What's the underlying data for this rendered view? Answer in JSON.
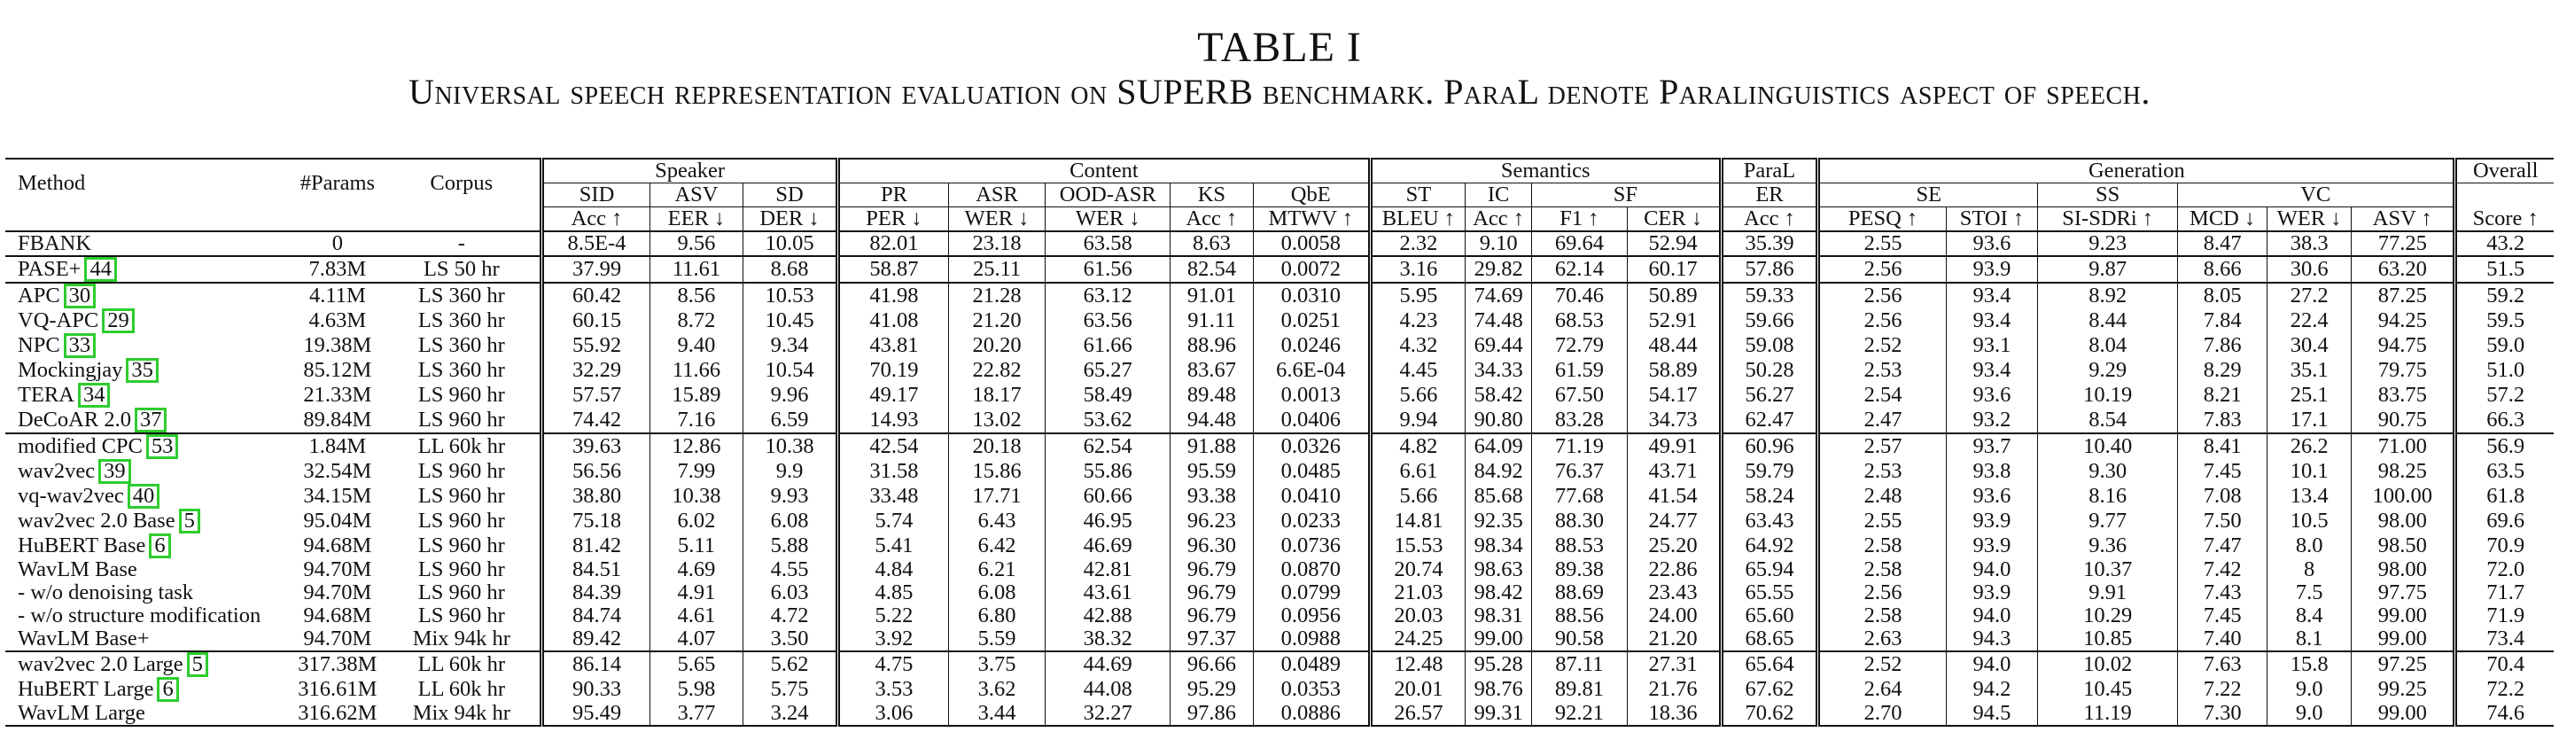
{
  "caption": {
    "table_label": "TABLE I",
    "title": "Universal speech representation evaluation on SUPERB benchmark. ParaL denote Paralinguistics aspect of speech."
  },
  "header": {
    "method": "Method",
    "params": "#Params",
    "corpus": "Corpus",
    "groups": [
      "Speaker",
      "Content",
      "Semantics",
      "ParaL",
      "Generation",
      "Overall"
    ],
    "tasks": [
      "SID",
      "ASV",
      "SD",
      "PR",
      "ASR",
      "OOD-ASR",
      "KS",
      "QbE",
      "ST",
      "IC",
      "SF",
      "ER",
      "SE",
      "SS",
      "VC"
    ],
    "metrics": [
      "Acc ↑",
      "EER ↓",
      "DER ↓",
      "PER ↓",
      "WER ↓",
      "WER ↓",
      "Acc ↑",
      "MTWV ↑",
      "BLEU ↑",
      "Acc ↑",
      "F1 ↑",
      "CER ↓",
      "Acc ↑",
      "PESQ ↑",
      "STOI ↑",
      "SI-SDRi ↑",
      "MCD ↓",
      "WER ↓",
      "ASV ↑",
      "Score ↑"
    ]
  },
  "accent_color": "#2ecc2e",
  "rows": [
    {
      "method": "FBANK",
      "cite": "",
      "params": "0",
      "corpus": "-",
      "values": [
        "8.5E-4",
        "9.56",
        "10.05",
        "82.01",
        "23.18",
        "63.58",
        "8.63",
        "0.0058",
        "2.32",
        "9.10",
        "69.64",
        "52.94",
        "35.39",
        "2.55",
        "93.6",
        "9.23",
        "8.47",
        "38.3",
        "77.25",
        "43.2"
      ],
      "group_start": false
    },
    {
      "method": "PASE+",
      "cite": "44",
      "params": "7.83M",
      "corpus": "LS 50 hr",
      "values": [
        "37.99",
        "11.61",
        "8.68",
        "58.87",
        "25.11",
        "61.56",
        "82.54",
        "0.0072",
        "3.16",
        "29.82",
        "62.14",
        "60.17",
        "57.86",
        "2.56",
        "93.9",
        "9.87",
        "8.66",
        "30.6",
        "63.20",
        "51.5"
      ],
      "group_start": true
    },
    {
      "method": "APC",
      "cite": "30",
      "params": "4.11M",
      "corpus": "LS 360 hr",
      "values": [
        "60.42",
        "8.56",
        "10.53",
        "41.98",
        "21.28",
        "63.12",
        "91.01",
        "0.0310",
        "5.95",
        "74.69",
        "70.46",
        "50.89",
        "59.33",
        "2.56",
        "93.4",
        "8.92",
        "8.05",
        "27.2",
        "87.25",
        "59.2"
      ],
      "group_start": true
    },
    {
      "method": "VQ-APC",
      "cite": "29",
      "params": "4.63M",
      "corpus": "LS 360 hr",
      "values": [
        "60.15",
        "8.72",
        "10.45",
        "41.08",
        "21.20",
        "63.56",
        "91.11",
        "0.0251",
        "4.23",
        "74.48",
        "68.53",
        "52.91",
        "59.66",
        "2.56",
        "93.4",
        "8.44",
        "7.84",
        "22.4",
        "94.25",
        "59.5"
      ],
      "group_start": false
    },
    {
      "method": "NPC",
      "cite": "33",
      "params": "19.38M",
      "corpus": "LS 360 hr",
      "values": [
        "55.92",
        "9.40",
        "9.34",
        "43.81",
        "20.20",
        "61.66",
        "88.96",
        "0.0246",
        "4.32",
        "69.44",
        "72.79",
        "48.44",
        "59.08",
        "2.52",
        "93.1",
        "8.04",
        "7.86",
        "30.4",
        "94.75",
        "59.0"
      ],
      "group_start": false
    },
    {
      "method": "Mockingjay",
      "cite": "35",
      "params": "85.12M",
      "corpus": "LS 360 hr",
      "values": [
        "32.29",
        "11.66",
        "10.54",
        "70.19",
        "22.82",
        "65.27",
        "83.67",
        "6.6E-04",
        "4.45",
        "34.33",
        "61.59",
        "58.89",
        "50.28",
        "2.53",
        "93.4",
        "9.29",
        "8.29",
        "35.1",
        "79.75",
        "51.0"
      ],
      "group_start": false
    },
    {
      "method": "TERA",
      "cite": "34",
      "params": "21.33M",
      "corpus": "LS 960 hr",
      "values": [
        "57.57",
        "15.89",
        "9.96",
        "49.17",
        "18.17",
        "58.49",
        "89.48",
        "0.0013",
        "5.66",
        "58.42",
        "67.50",
        "54.17",
        "56.27",
        "2.54",
        "93.6",
        "10.19",
        "8.21",
        "25.1",
        "83.75",
        "57.2"
      ],
      "group_start": false
    },
    {
      "method": "DeCoAR 2.0",
      "cite": "37",
      "params": "89.84M",
      "corpus": "LS 960 hr",
      "values": [
        "74.42",
        "7.16",
        "6.59",
        "14.93",
        "13.02",
        "53.62",
        "94.48",
        "0.0406",
        "9.94",
        "90.80",
        "83.28",
        "34.73",
        "62.47",
        "2.47",
        "93.2",
        "8.54",
        "7.83",
        "17.1",
        "90.75",
        "66.3"
      ],
      "group_start": false
    },
    {
      "method": "modified CPC",
      "cite": "53",
      "params": "1.84M",
      "corpus": "LL 60k hr",
      "values": [
        "39.63",
        "12.86",
        "10.38",
        "42.54",
        "20.18",
        "62.54",
        "91.88",
        "0.0326",
        "4.82",
        "64.09",
        "71.19",
        "49.91",
        "60.96",
        "2.57",
        "93.7",
        "10.40",
        "8.41",
        "26.2",
        "71.00",
        "56.9"
      ],
      "group_start": true
    },
    {
      "method": "wav2vec",
      "cite": "39",
      "params": "32.54M",
      "corpus": "LS 960 hr",
      "values": [
        "56.56",
        "7.99",
        "9.9",
        "31.58",
        "15.86",
        "55.86",
        "95.59",
        "0.0485",
        "6.61",
        "84.92",
        "76.37",
        "43.71",
        "59.79",
        "2.53",
        "93.8",
        "9.30",
        "7.45",
        "10.1",
        "98.25",
        "63.5"
      ],
      "group_start": false
    },
    {
      "method": "vq-wav2vec",
      "cite": "40",
      "params": "34.15M",
      "corpus": "LS 960 hr",
      "values": [
        "38.80",
        "10.38",
        "9.93",
        "33.48",
        "17.71",
        "60.66",
        "93.38",
        "0.0410",
        "5.66",
        "85.68",
        "77.68",
        "41.54",
        "58.24",
        "2.48",
        "93.6",
        "8.16",
        "7.08",
        "13.4",
        "100.00",
        "61.8"
      ],
      "group_start": false
    },
    {
      "method": "wav2vec 2.0 Base",
      "cite": "5",
      "params": "95.04M",
      "corpus": "LS 960 hr",
      "values": [
        "75.18",
        "6.02",
        "6.08",
        "5.74",
        "6.43",
        "46.95",
        "96.23",
        "0.0233",
        "14.81",
        "92.35",
        "88.30",
        "24.77",
        "63.43",
        "2.55",
        "93.9",
        "9.77",
        "7.50",
        "10.5",
        "98.00",
        "69.6"
      ],
      "group_start": false
    },
    {
      "method": "HuBERT Base",
      "cite": "6",
      "params": "94.68M",
      "corpus": "LS 960 hr",
      "values": [
        "81.42",
        "5.11",
        "5.88",
        "5.41",
        "6.42",
        "46.69",
        "96.30",
        "0.0736",
        "15.53",
        "98.34",
        "88.53",
        "25.20",
        "64.92",
        "2.58",
        "93.9",
        "9.36",
        "7.47",
        "8.0",
        "98.50",
        "70.9"
      ],
      "group_start": false
    },
    {
      "method": "WavLM Base",
      "cite": "",
      "params": "94.70M",
      "corpus": "LS 960 hr",
      "values": [
        "84.51",
        "4.69",
        "4.55",
        "4.84",
        "6.21",
        "42.81",
        "96.79",
        "0.0870",
        "20.74",
        "98.63",
        "89.38",
        "22.86",
        "65.94",
        "2.58",
        "94.0",
        "10.37",
        "7.42",
        "8",
        "98.00",
        "72.0"
      ],
      "group_start": false
    },
    {
      "method": "- w/o denoising task",
      "cite": "",
      "params": "94.70M",
      "corpus": "LS 960 hr",
      "values": [
        "84.39",
        "4.91",
        "6.03",
        "4.85",
        "6.08",
        "43.61",
        "96.79",
        "0.0799",
        "21.03",
        "98.42",
        "88.69",
        "23.43",
        "65.55",
        "2.56",
        "93.9",
        "9.91",
        "7.43",
        "7.5",
        "97.75",
        "71.7"
      ],
      "group_start": false
    },
    {
      "method": "- w/o structure modification",
      "cite": "",
      "params": "94.68M",
      "corpus": "LS 960 hr",
      "values": [
        "84.74",
        "4.61",
        "4.72",
        "5.22",
        "6.80",
        "42.88",
        "96.79",
        "0.0956",
        "20.03",
        "98.31",
        "88.56",
        "24.00",
        "65.60",
        "2.58",
        "94.0",
        "10.29",
        "7.45",
        "8.4",
        "99.00",
        "71.9"
      ],
      "group_start": false
    },
    {
      "method": "WavLM Base+",
      "cite": "",
      "params": "94.70M",
      "corpus": "Mix 94k hr",
      "values": [
        "89.42",
        "4.07",
        "3.50",
        "3.92",
        "5.59",
        "38.32",
        "97.37",
        "0.0988",
        "24.25",
        "99.00",
        "90.58",
        "21.20",
        "68.65",
        "2.63",
        "94.3",
        "10.85",
        "7.40",
        "8.1",
        "99.00",
        "73.4"
      ],
      "group_start": false
    },
    {
      "method": "wav2vec 2.0 Large",
      "cite": "5",
      "params": "317.38M",
      "corpus": "LL 60k hr",
      "values": [
        "86.14",
        "5.65",
        "5.62",
        "4.75",
        "3.75",
        "44.69",
        "96.66",
        "0.0489",
        "12.48",
        "95.28",
        "87.11",
        "27.31",
        "65.64",
        "2.52",
        "94.0",
        "10.02",
        "7.63",
        "15.8",
        "97.25",
        "70.4"
      ],
      "group_start": true
    },
    {
      "method": "HuBERT Large",
      "cite": "6",
      "params": "316.61M",
      "corpus": "LL 60k hr",
      "values": [
        "90.33",
        "5.98",
        "5.75",
        "3.53",
        "3.62",
        "44.08",
        "95.29",
        "0.0353",
        "20.01",
        "98.76",
        "89.81",
        "21.76",
        "67.62",
        "2.64",
        "94.2",
        "10.45",
        "7.22",
        "9.0",
        "99.25",
        "72.2"
      ],
      "group_start": false
    },
    {
      "method": "WavLM Large",
      "cite": "",
      "params": "316.62M",
      "corpus": "Mix 94k hr",
      "values": [
        "95.49",
        "3.77",
        "3.24",
        "3.06",
        "3.44",
        "32.27",
        "97.86",
        "0.0886",
        "26.57",
        "99.31",
        "92.21",
        "18.36",
        "70.62",
        "2.70",
        "94.5",
        "11.19",
        "7.30",
        "9.0",
        "99.00",
        "74.6"
      ],
      "group_start": false
    }
  ],
  "bold_cells": [
    [
      10,
      16
    ],
    [
      10,
      18
    ],
    [
      14,
      17
    ],
    [
      16,
      7
    ],
    [
      19,
      0
    ],
    [
      19,
      1
    ],
    [
      19,
      2
    ],
    [
      19,
      3
    ],
    [
      19,
      4
    ],
    [
      19,
      5
    ],
    [
      19,
      6
    ],
    [
      19,
      8
    ],
    [
      19,
      9
    ],
    [
      19,
      10
    ],
    [
      19,
      11
    ],
    [
      19,
      12
    ],
    [
      19,
      13
    ],
    [
      19,
      14
    ],
    [
      19,
      15
    ],
    [
      19,
      19
    ]
  ]
}
